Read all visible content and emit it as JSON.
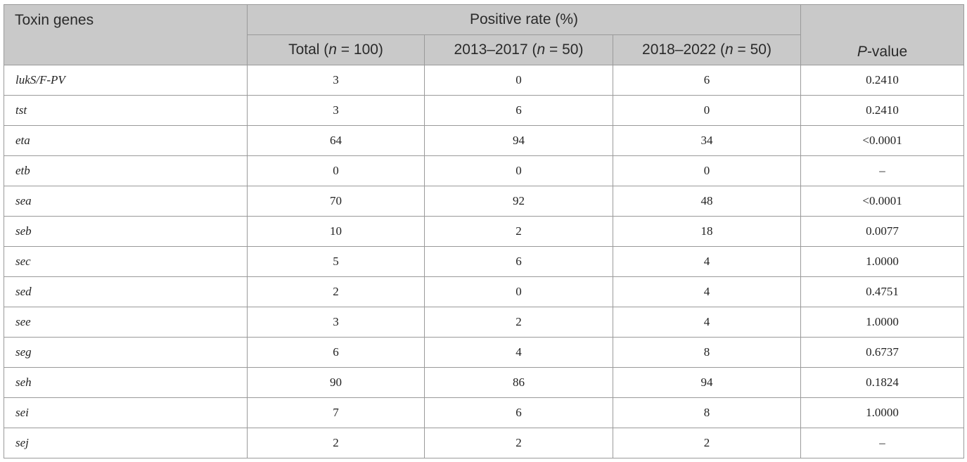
{
  "table": {
    "header": {
      "first_col": "Toxin genes",
      "group": "Positive rate (%)",
      "pvalue_p": "P",
      "pvalue_rest": "-value",
      "subcols": [
        {
          "label": "Total (",
          "n": "n",
          "rest": " = 100)"
        },
        {
          "label": "2013–2017 (",
          "n": "n",
          "rest": " = 50)"
        },
        {
          "label": "2018–2022 (",
          "n": "n",
          "rest": " = 50)"
        }
      ]
    },
    "rows": [
      {
        "gene": "lukS/F-PV",
        "total": "3",
        "p1": "0",
        "p2": "6",
        "pvalue": "0.2410"
      },
      {
        "gene": "tst",
        "total": "3",
        "p1": "6",
        "p2": "0",
        "pvalue": "0.2410"
      },
      {
        "gene": "eta",
        "total": "64",
        "p1": "94",
        "p2": "34",
        "pvalue": "<0.0001"
      },
      {
        "gene": "etb",
        "total": "0",
        "p1": "0",
        "p2": "0",
        "pvalue": "–"
      },
      {
        "gene": "sea",
        "total": "70",
        "p1": "92",
        "p2": "48",
        "pvalue": "<0.0001"
      },
      {
        "gene": "seb",
        "total": "10",
        "p1": "2",
        "p2": "18",
        "pvalue": "0.0077"
      },
      {
        "gene": "sec",
        "total": "5",
        "p1": "6",
        "p2": "4",
        "pvalue": "1.0000"
      },
      {
        "gene": "sed",
        "total": "2",
        "p1": "0",
        "p2": "4",
        "pvalue": "0.4751"
      },
      {
        "gene": "see",
        "total": "3",
        "p1": "2",
        "p2": "4",
        "pvalue": "1.0000"
      },
      {
        "gene": "seg",
        "total": "6",
        "p1": "4",
        "p2": "8",
        "pvalue": "0.6737"
      },
      {
        "gene": "seh",
        "total": "90",
        "p1": "86",
        "p2": "94",
        "pvalue": "0.1824"
      },
      {
        "gene": "sei",
        "total": "7",
        "p1": "6",
        "p2": "8",
        "pvalue": "1.0000"
      },
      {
        "gene": "sej",
        "total": "2",
        "p1": "2",
        "p2": "2",
        "pvalue": "–"
      }
    ]
  }
}
